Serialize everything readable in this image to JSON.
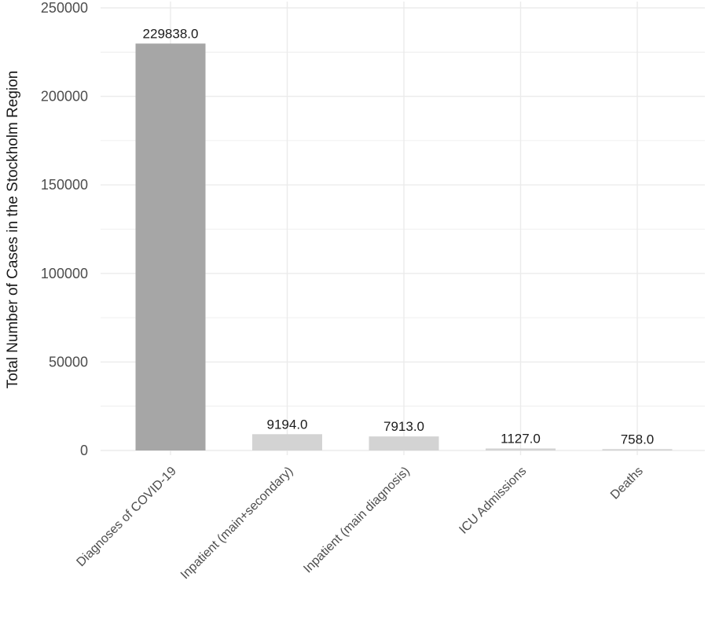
{
  "chart_data": {
    "type": "bar",
    "categories": [
      "Diagnoses of COVID-19",
      "Inpatient (main+secondary)",
      "Inpatient (main diagnosis)",
      "ICU Admissions",
      "Deaths"
    ],
    "values": [
      229838.0,
      9194.0,
      7913.0,
      1127.0,
      758.0
    ],
    "value_labels": [
      "229838.0",
      "9194.0",
      "7913.0",
      "1127.0",
      "758.0"
    ],
    "title": "",
    "xlabel": "",
    "ylabel": "Total Number of Cases in the Stockholm Region",
    "ylim": [
      0,
      250000
    ],
    "yticks": [
      0,
      50000,
      100000,
      150000,
      200000,
      250000
    ],
    "ytick_labels": [
      "0",
      "50000",
      "100000",
      "150000",
      "200000",
      "250000"
    ],
    "grid": true,
    "legend": "none",
    "colors": {
      "highlight_bar": "#a6a6a6",
      "other_bars": "#d3d3d3",
      "grid": "#ebebeb"
    },
    "bar_color_keys": [
      "highlight_bar",
      "other_bars",
      "other_bars",
      "other_bars",
      "other_bars"
    ]
  }
}
